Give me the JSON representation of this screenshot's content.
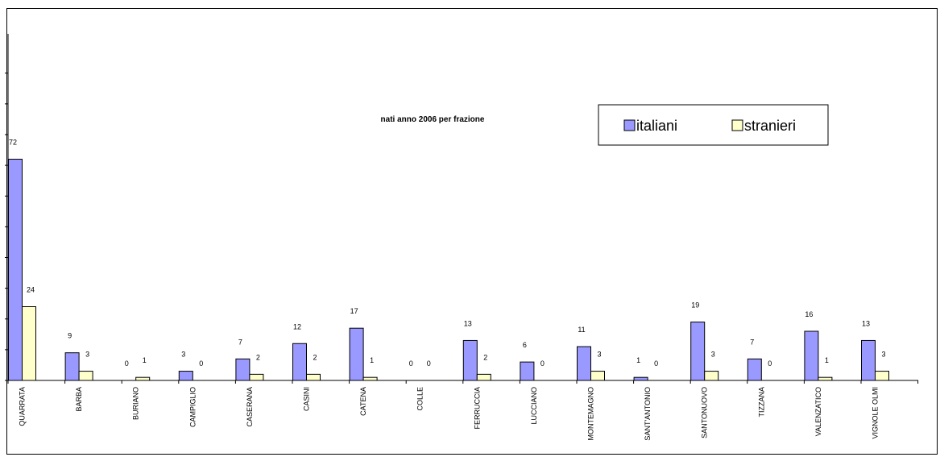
{
  "chart_data": {
    "type": "bar",
    "title": "nati anno 2006 per frazione",
    "categories": [
      "QUARRATA",
      "BARBA",
      "BURIANO",
      "CAMPIGLIO",
      "CASERANA",
      "CASINI",
      "CATENA",
      "COLLE",
      "FERRUCCIA",
      "LUCCIANO",
      "MONTEMAGNO",
      "SANT'ANTONIO",
      "SANTONUOVO",
      "TIZZANA",
      "VALENZATICO",
      "VIGNOLE OLMI"
    ],
    "series": [
      {
        "name": "italiani",
        "color": "#9999FF",
        "values": [
          72,
          9,
          0,
          3,
          7,
          12,
          17,
          0,
          13,
          6,
          11,
          1,
          19,
          7,
          16,
          13
        ]
      },
      {
        "name": "stranieri",
        "color": "#FFFFCC",
        "values": [
          24,
          3,
          1,
          0,
          2,
          2,
          1,
          0,
          2,
          0,
          3,
          0,
          3,
          0,
          1,
          3
        ]
      }
    ],
    "ylim": [
      0,
      80
    ],
    "xlabel": "",
    "ylabel": "",
    "grid": false,
    "legend_position": "top-right",
    "data_labels": true
  }
}
